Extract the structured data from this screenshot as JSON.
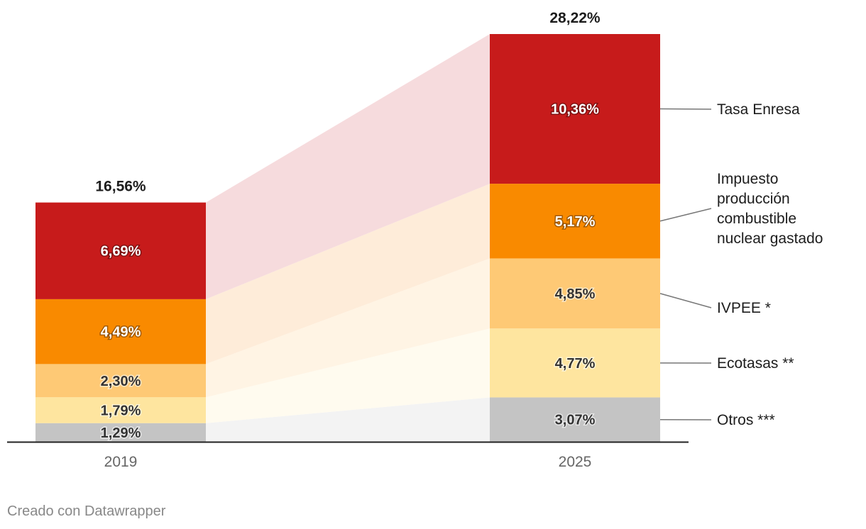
{
  "chart_data": {
    "type": "bar",
    "subtype": "stacked",
    "categories": [
      "2019",
      "2025"
    ],
    "totals": [
      "16,56%",
      "28,22%"
    ],
    "total_values": [
      16.56,
      28.22
    ],
    "series": [
      {
        "name": "Otros ***",
        "values": [
          1.29,
          3.07
        ],
        "labels": [
          "1,29%",
          "3,07%"
        ],
        "color": "#c4c4c4",
        "band_color": "#f3f3f3"
      },
      {
        "name": "Ecotasas **",
        "values": [
          1.79,
          4.77
        ],
        "labels": [
          "1,79%",
          "4,77%"
        ],
        "color": "#fee59f",
        "band_color": "#fffbef"
      },
      {
        "name": "IVPEE *",
        "values": [
          2.3,
          4.85
        ],
        "labels": [
          "2,30%",
          "4,85%"
        ],
        "color": "#fec975",
        "band_color": "#fff4e4"
      },
      {
        "name": "Impuesto producción combustible nuclear gastado",
        "name_lines": [
          "Impuesto",
          "producción",
          "combustible",
          "nuclear gastado"
        ],
        "values": [
          4.49,
          5.17
        ],
        "labels": [
          "4,49%",
          "5,17%"
        ],
        "color": "#f98a00",
        "band_color": "#feecd9"
      },
      {
        "name": "Tasa Enresa",
        "values": [
          6.69,
          10.36
        ],
        "labels": [
          "6,69%",
          "10,36%"
        ],
        "color": "#c71b1b",
        "band_color": "#f6dbdd"
      }
    ],
    "ylim": [
      0,
      28.22
    ],
    "xlabel": "",
    "ylabel": ""
  },
  "footer": {
    "credit": "Creado con Datawrapper"
  }
}
